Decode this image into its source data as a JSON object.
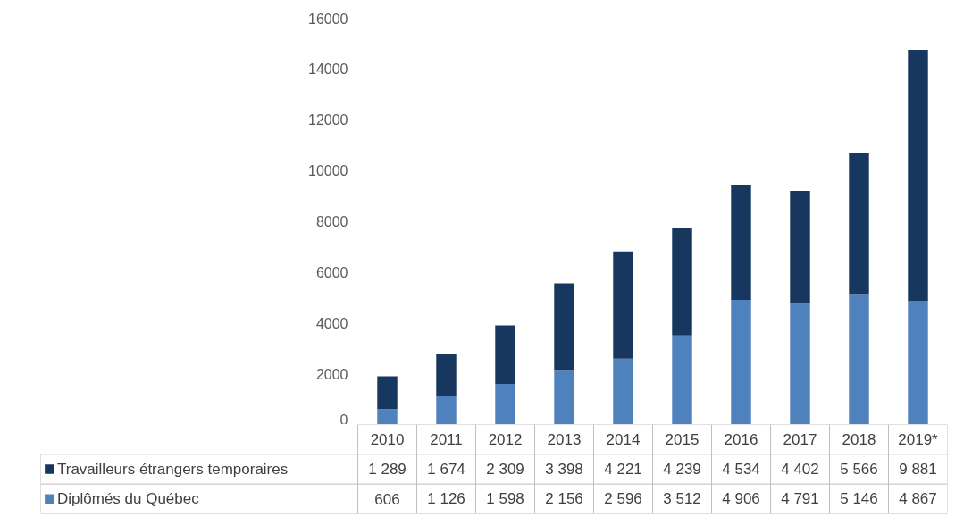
{
  "chart_data": {
    "type": "bar",
    "stacked": true,
    "categories": [
      "2010",
      "2011",
      "2012",
      "2013",
      "2014",
      "2015",
      "2016",
      "2017",
      "2018",
      "2019*"
    ],
    "series": [
      {
        "name": "Diplômés du Québec",
        "color": "#4f81bd",
        "values": [
          606,
          1126,
          1598,
          2156,
          2596,
          3512,
          4906,
          4791,
          5146,
          4867
        ],
        "value_labels": [
          "606",
          "1 126",
          "1 598",
          "2 156",
          "2 596",
          "3 512",
          "4 906",
          "4 791",
          "5 146",
          "4 867"
        ]
      },
      {
        "name": "Travailleurs étrangers temporaires",
        "color": "#17375e",
        "values": [
          1289,
          1674,
          2309,
          3398,
          4221,
          4239,
          4534,
          4402,
          5566,
          9881
        ],
        "value_labels": [
          "1 289",
          "1 674",
          "2 309",
          "3 398",
          "4 221",
          "4 239",
          "4 534",
          "4 402",
          "5 566",
          "9 881"
        ]
      }
    ],
    "ylim": [
      0,
      16000
    ],
    "yticks": [
      0,
      2000,
      4000,
      6000,
      8000,
      10000,
      12000,
      14000,
      16000
    ],
    "grid": false,
    "legend": "bottom"
  }
}
